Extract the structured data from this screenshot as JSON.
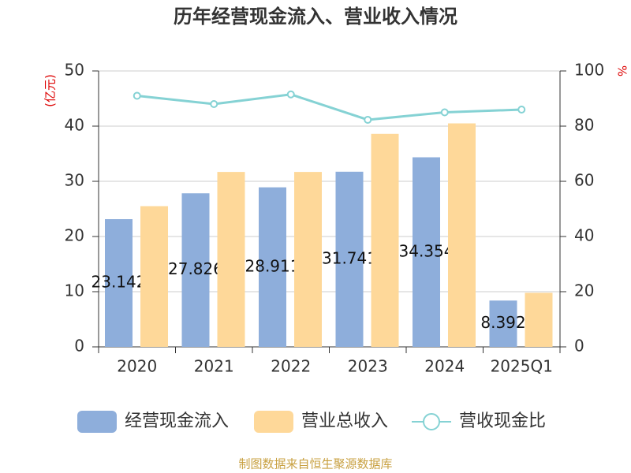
{
  "chart_data": {
    "type": "bar",
    "title": "历年经营现金流入、营业收入情况",
    "y_label": "(亿元)",
    "y2_label": "%",
    "categories": [
      "2020",
      "2021",
      "2022",
      "2023",
      "2024",
      "2025Q1"
    ],
    "series": [
      {
        "name": "经营现金流入",
        "color": "#8eaedb",
        "type": "bar",
        "values": [
          23.142,
          27.826,
          28.911,
          31.741,
          34.354,
          8.392
        ],
        "show_labels": true
      },
      {
        "name": "营业总收入",
        "color": "#fed899",
        "type": "bar",
        "values": [
          25.5,
          31.7,
          31.7,
          38.6,
          40.5,
          9.8
        ]
      },
      {
        "name": "营收现金比",
        "color": "#85d2d4",
        "type": "line",
        "axis": "y2",
        "values": [
          91,
          88,
          91.5,
          82.3,
          85,
          86
        ]
      }
    ],
    "ylim": [
      0,
      50
    ],
    "yticks": [
      0,
      10,
      20,
      30,
      40,
      50
    ],
    "y2lim": [
      0,
      100
    ],
    "y2ticks": [
      0,
      20,
      40,
      60,
      80,
      100
    ],
    "grid": true,
    "legend": "bottom",
    "source": "制图数据来自恒生聚源数据库"
  }
}
